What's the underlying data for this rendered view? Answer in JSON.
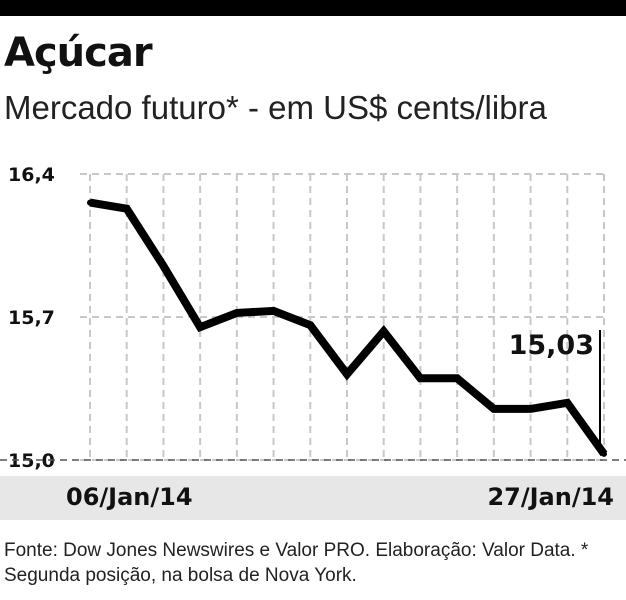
{
  "header": {
    "title": "Açúcar",
    "subtitle": "Mercado futuro* - em US$ cents/libra"
  },
  "colors": {
    "line": "#000000",
    "grid": "#c8c8c8",
    "date_band": "#e7e7e7",
    "top_bar": "#000000"
  },
  "chart_data": {
    "type": "line",
    "ylim": [
      15.0,
      16.4
    ],
    "yticks": [
      15.0,
      15.7,
      16.4
    ],
    "ytick_labels": [
      "15,0",
      "15,7",
      "16,4"
    ],
    "x_labels": [
      "06/Jan/14",
      "27/Jan/14"
    ],
    "grid": true,
    "series": [
      {
        "values": [
          16.26,
          16.23,
          15.95,
          15.65,
          15.72,
          15.73,
          15.66,
          15.42,
          15.63,
          15.4,
          15.4,
          15.25,
          15.25,
          15.28,
          15.03
        ]
      }
    ],
    "annotations": [
      {
        "label": "15,03",
        "value": 15.03,
        "point_index": 14
      }
    ]
  },
  "footer": {
    "source": "Fonte: Dow Jones Newswires e Valor PRO. Elaboração: Valor Data. * Segunda posição, na bolsa de Nova York."
  }
}
